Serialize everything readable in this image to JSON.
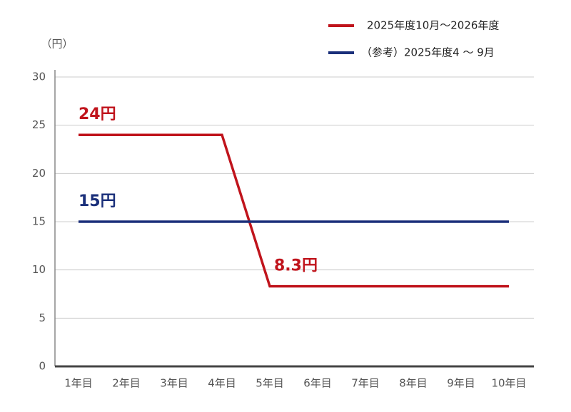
{
  "chart_data": {
    "type": "line",
    "y_unit": "（円）",
    "categories": [
      "1年目",
      "2年目",
      "3年目",
      "4年目",
      "5年目",
      "6年目",
      "7年目",
      "8年目",
      "9年目",
      "10年目"
    ],
    "series": [
      {
        "name": "2025年度10月～2026年度",
        "color": "#c0141c",
        "values": [
          24,
          24,
          24,
          24,
          8.3,
          8.3,
          8.3,
          8.3,
          8.3,
          8.3
        ],
        "value_labels": [
          "24円",
          null,
          null,
          null,
          "8.3円",
          null,
          null,
          null,
          null,
          null
        ]
      },
      {
        "name": "（参考）2025年度4 ～ 9月",
        "color": "#1a2f7a",
        "values": [
          15,
          15,
          15,
          15,
          15,
          15,
          15,
          15,
          15,
          15
        ],
        "value_labels": [
          "15円",
          null,
          null,
          null,
          null,
          null,
          null,
          null,
          null,
          null
        ]
      }
    ],
    "ylim": [
      0,
      30
    ],
    "yticks": [
      0,
      5,
      10,
      15,
      20,
      25,
      30
    ],
    "grid": true,
    "legend": "top-right"
  }
}
